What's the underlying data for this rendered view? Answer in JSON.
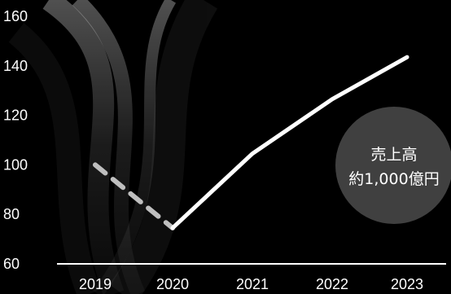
{
  "chart_data": {
    "type": "line",
    "categories": [
      "2019",
      "2020",
      "2021",
      "2022",
      "2023"
    ],
    "ylim": [
      60,
      160
    ],
    "yticks": [
      "60",
      "80",
      "100",
      "120",
      "140",
      "160"
    ],
    "grid": false,
    "series": [
      {
        "segment": "dashed",
        "color": "#bfbfbf",
        "values": [
          100,
          74.5,
          null,
          null,
          null
        ]
      },
      {
        "segment": "solid",
        "color": "#ffffff",
        "values": [
          null,
          74.5,
          104.5,
          126.5,
          143.5
        ]
      }
    ],
    "annotation": {
      "line1": "売上高",
      "line2": "約1,000億円",
      "attached_to": "2023"
    }
  },
  "colors": {
    "background": "#000000",
    "axis": "#ffffff",
    "badge": "#404040",
    "text": "#ffffff"
  }
}
